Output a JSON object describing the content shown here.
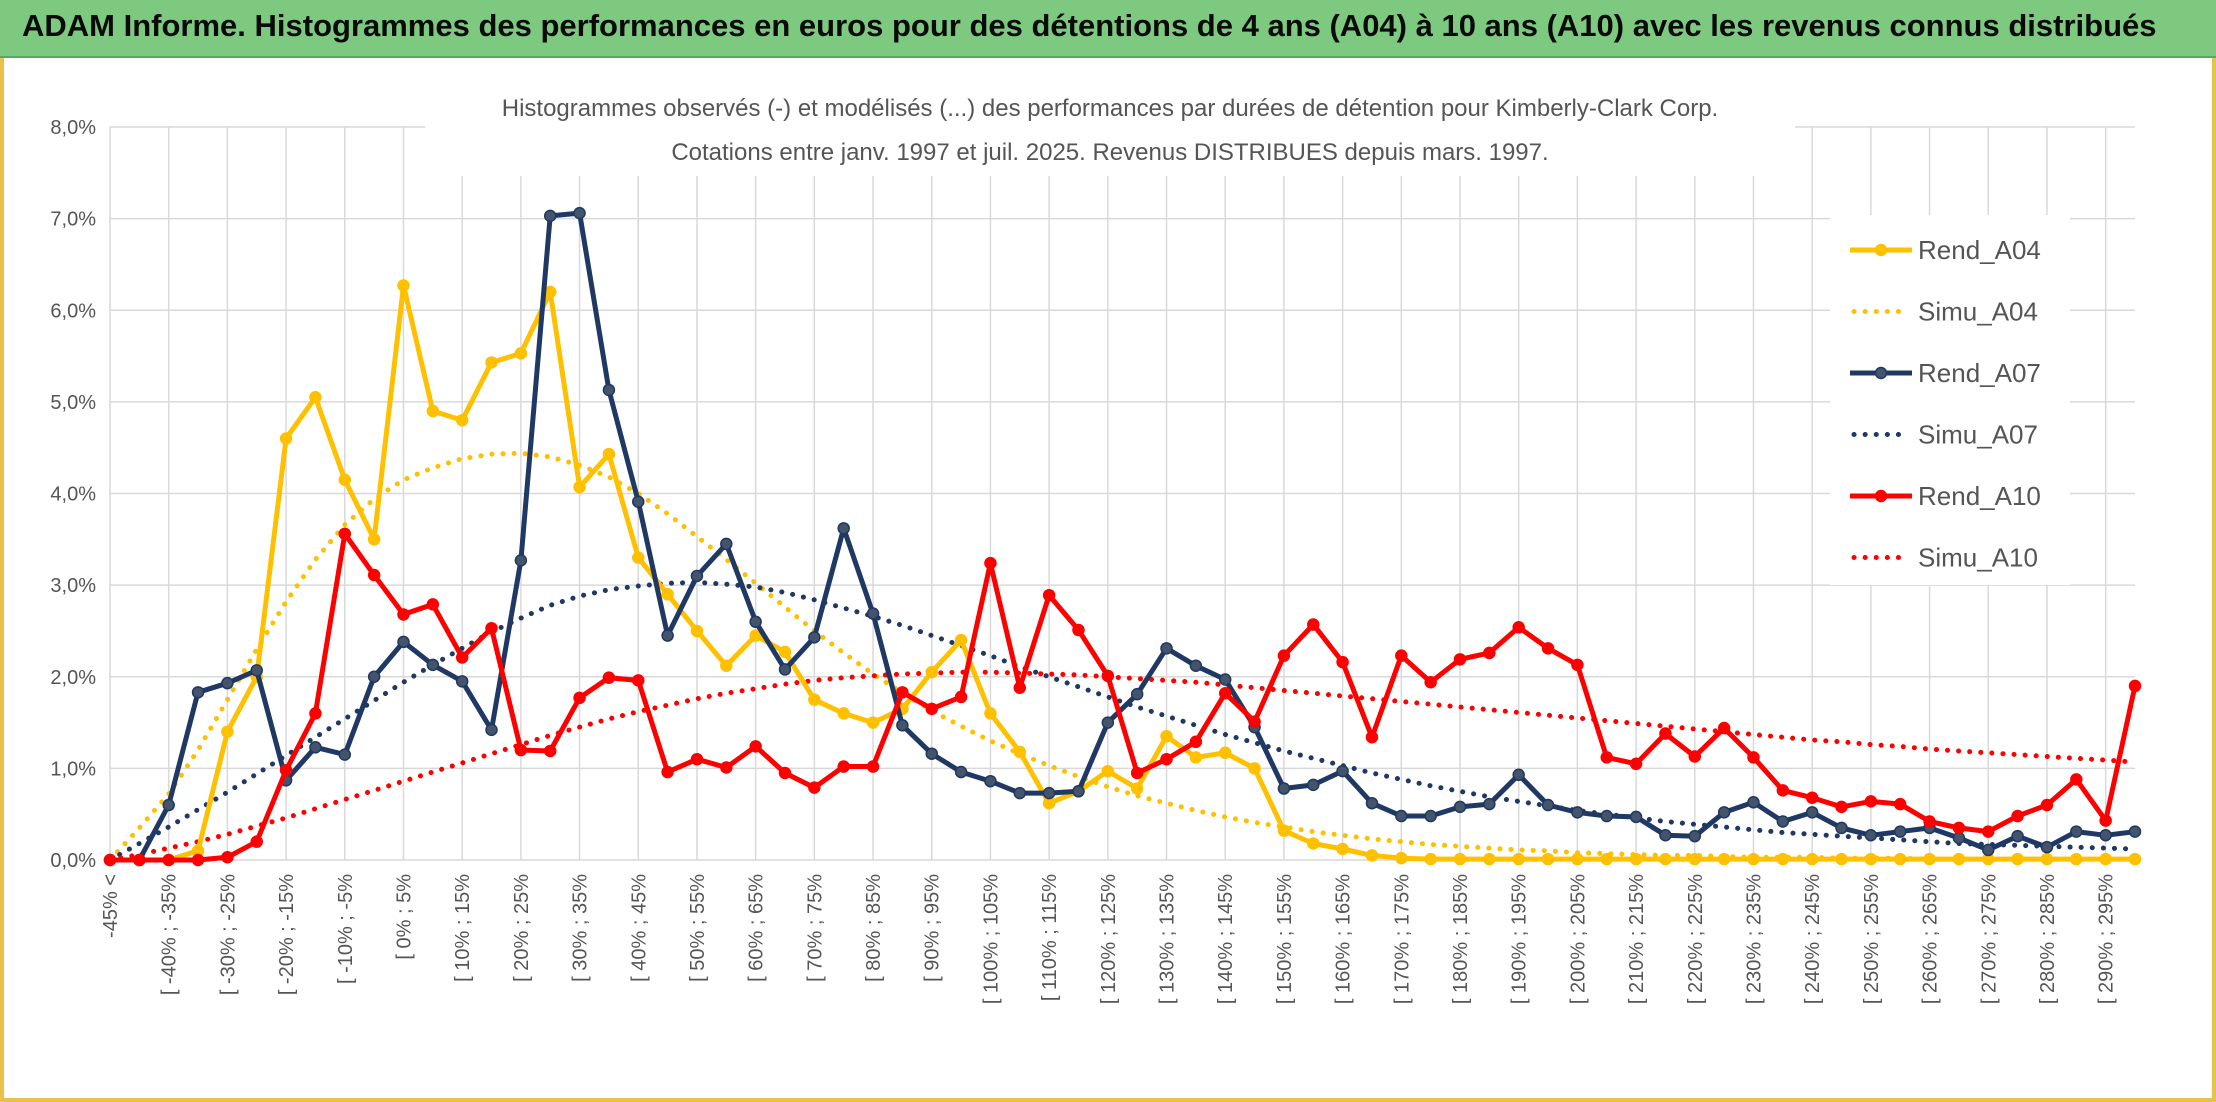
{
  "banner": {
    "title": "ADAM Informe. Histogrammes des performances en euros pour des détentions de 4 ans (A04) à 10 ans (A10) avec les revenus connus distribués"
  },
  "colors": {
    "banner_bg": "#7dc97f",
    "frame": "#e8c24a",
    "A04": "#ffc000",
    "A07": "#1f3864",
    "A10": "#ff0000",
    "grid": "#d9d9d9",
    "text": "#555555"
  },
  "chart_data": {
    "type": "line",
    "title": "Histogrammes observés (-) et modélisés (...) des performances par durées de détention pour Kimberly-Clark Corp.",
    "subtitle": "Cotations entre janv. 1997 et juil. 2025. Revenus DISTRIBUES depuis mars. 1997.",
    "xlabel": "",
    "ylabel": "",
    "ylim": [
      0,
      0.08
    ],
    "y_ticks": [
      "0,0%",
      "1,0%",
      "2,0%",
      "3,0%",
      "4,0%",
      "5,0%",
      "6,0%",
      "7,0%",
      "8,0%"
    ],
    "grid": true,
    "legend_position": "right",
    "categories": [
      "-45% <",
      "[ -45% ; -40%",
      "[ -40% ; -35%",
      "[ -35% ; -30%",
      "[ -30% ; -25%",
      "[ -25% ; -20%",
      "[ -20% ; -15%",
      "[ -15% ; -10%",
      "[ -10% ; -5%",
      "[ -5% ; 0%",
      "[ 0% ; 5%",
      "[ 5% ; 10%",
      "[ 10% ; 15%",
      "[ 15% ; 20%",
      "[ 20% ; 25%",
      "[ 25% ; 30%",
      "[ 30% ; 35%",
      "[ 35% ; 40%",
      "[ 40% ; 45%",
      "[ 45% ; 50%",
      "[ 50% ; 55%",
      "[ 55% ; 60%",
      "[ 60% ; 65%",
      "[ 65% ; 70%",
      "[ 70% ; 75%",
      "[ 75% ; 80%",
      "[ 80% ; 85%",
      "[ 85% ; 90%",
      "[ 90% ; 95%",
      "[ 95% ; 100%",
      "[ 100% ; 105%",
      "[ 105% ; 110%",
      "[ 110% ; 115%",
      "[ 115% ; 120%",
      "[ 120% ; 125%",
      "[ 125% ; 130%",
      "[ 130% ; 135%",
      "[ 135% ; 140%",
      "[ 140% ; 145%",
      "[ 145% ; 150%",
      "[ 150% ; 155%",
      "[ 155% ; 160%",
      "[ 160% ; 165%",
      "[ 165% ; 170%",
      "[ 170% ; 175%",
      "[ 175% ; 180%",
      "[ 180% ; 185%",
      "[ 185% ; 190%",
      "[ 190% ; 195%",
      "[ 195% ; 200%",
      "[ 200% ; 205%",
      "[ 205% ; 210%",
      "[ 210% ; 215%",
      "[ 215% ; 220%",
      "[ 220% ; 225%",
      "[ 225% ; 230%",
      "[ 230% ; 235%",
      "[ 235% ; 240%",
      "[ 240% ; 245%",
      "[ 245% ; 250%",
      "[ 250% ; 255%",
      "[ 255% ; 260%",
      "[ 260% ; 265%",
      "[ 265% ; 270%",
      "[ 270% ; 275%",
      "[ 275% ; 280%",
      "[ 280% ; 285%",
      "[ 285% ; 290%",
      "[ 290% ; 295%",
      "[ 295% ; 300%"
    ],
    "visible_tick_labels": [
      "-45% <",
      "[ -40% ; -35%",
      "[ -30% ; -25%",
      "[ -20% ; -15%",
      "[ -10% ; -5%",
      "[ 0% ; 5%",
      "[ 10% ; 15%",
      "[ 20% ; 25%",
      "[ 30% ; 35%",
      "[ 40% ; 45%",
      "[ 50% ; 55%",
      "[ 60% ; 65%",
      "[ 70% ; 75%",
      "[ 80% ; 85%",
      "[ 90% ; 95%",
      "[ 100% ; 105%",
      "[ 110% ; 115%",
      "[ 120% ; 125%",
      "[ 130% ; 135%",
      "[ 140% ; 145%",
      "[ 150% ; 155%",
      "[ 160% ; 165%",
      "[ 170% ; 175%",
      "[ 180% ; 185%",
      "[ 190% ; 195%",
      "[ 200% ; 205%",
      "[ 210% ; 215%",
      "[ 220% ; 225%",
      "[ 230% ; 235%",
      "[ 240% ; 245%",
      "[ 250% ; 255%",
      "[ 260% ; 265%",
      "[ 270% ; 275%",
      "[ 280% ; 285%",
      "[ 290% ; 295%"
    ],
    "series": [
      {
        "name": "Rend_A04",
        "style": "solid",
        "marker": true,
        "color": "#ffc000",
        "values": [
          0.0,
          0.0,
          0.0,
          0.001,
          0.014,
          0.02,
          0.046,
          0.0505,
          0.0415,
          0.035,
          0.0627,
          0.049,
          0.048,
          0.0543,
          0.0553,
          0.062,
          0.0407,
          0.0443,
          0.033,
          0.029,
          0.025,
          0.0212,
          0.0245,
          0.0227,
          0.0175,
          0.016,
          0.015,
          0.0165,
          0.0205,
          0.024,
          0.016,
          0.0118,
          0.0062,
          0.0075,
          0.0097,
          0.0078,
          0.0135,
          0.0112,
          0.0117,
          0.01,
          0.0032,
          0.0018,
          0.0012,
          0.0005,
          0.0002,
          0.0001,
          0.0001,
          0.0001,
          0.0001,
          0.0001,
          0.0001,
          0.0001,
          0.0001,
          0.0001,
          0.0001,
          0.0001,
          0.0001,
          0.0001,
          0.0001,
          0.0001,
          0.0001,
          0.0001,
          0.0001,
          0.0001,
          0.0001,
          0.0001,
          0.0001,
          0.0001,
          0.0001,
          0.0001
        ]
      },
      {
        "name": "Simu_A04",
        "style": "dotted",
        "marker": false,
        "color": "#ffc000",
        "values": [
          0.0,
          0.0035,
          0.0072,
          0.012,
          0.0175,
          0.023,
          0.0282,
          0.0328,
          0.0366,
          0.0394,
          0.0415,
          0.0428,
          0.0438,
          0.0443,
          0.0444,
          0.044,
          0.0431,
          0.0418,
          0.04,
          0.0378,
          0.0353,
          0.0328,
          0.0302,
          0.0276,
          0.025,
          0.0226,
          0.0203,
          0.0182,
          0.0163,
          0.0146,
          0.013,
          0.0116,
          0.0103,
          0.0091,
          0.008,
          0.007,
          0.0062,
          0.0054,
          0.0047,
          0.0041,
          0.0036,
          0.0031,
          0.0027,
          0.0023,
          0.002,
          0.0017,
          0.0015,
          0.0013,
          0.0011,
          0.001,
          0.0008,
          0.0007,
          0.0006,
          0.0005,
          0.0005,
          0.0004,
          0.0003,
          0.0003,
          0.0003,
          0.0002,
          0.0002,
          0.0002,
          0.0001,
          0.0001,
          0.0001,
          0.0001,
          0.0001,
          0.0001,
          0.0001,
          0.0001
        ]
      },
      {
        "name": "Rend_A07",
        "style": "solid",
        "marker": true,
        "color": "#1f3864",
        "values": [
          0.0,
          0.0,
          0.006,
          0.0183,
          0.0193,
          0.0207,
          0.0087,
          0.0123,
          0.0115,
          0.02,
          0.0238,
          0.0213,
          0.0195,
          0.0142,
          0.0327,
          0.0703,
          0.0706,
          0.0513,
          0.0391,
          0.0245,
          0.031,
          0.0345,
          0.026,
          0.0208,
          0.0243,
          0.0362,
          0.0269,
          0.0147,
          0.0116,
          0.0096,
          0.0086,
          0.0073,
          0.0073,
          0.0075,
          0.015,
          0.0181,
          0.0231,
          0.0212,
          0.0197,
          0.0145,
          0.0078,
          0.0082,
          0.0097,
          0.0062,
          0.0048,
          0.0048,
          0.0058,
          0.0061,
          0.0093,
          0.006,
          0.0052,
          0.0048,
          0.0047,
          0.0027,
          0.0026,
          0.0052,
          0.0063,
          0.0042,
          0.0052,
          0.0035,
          0.0027,
          0.0031,
          0.0035,
          0.0024,
          0.0011,
          0.0026,
          0.0014,
          0.0031,
          0.0027,
          0.0031
        ]
      },
      {
        "name": "Simu_A07",
        "style": "dotted",
        "marker": false,
        "color": "#1f3864",
        "values": [
          0.0,
          0.0018,
          0.0036,
          0.0055,
          0.0074,
          0.0094,
          0.0114,
          0.0134,
          0.0154,
          0.0174,
          0.0194,
          0.0213,
          0.0231,
          0.0249,
          0.0264,
          0.0278,
          0.0288,
          0.0295,
          0.0299,
          0.0302,
          0.0303,
          0.0301,
          0.0298,
          0.0292,
          0.0284,
          0.0275,
          0.0266,
          0.0256,
          0.0245,
          0.0234,
          0.0223,
          0.0211,
          0.02,
          0.0189,
          0.0178,
          0.0167,
          0.0157,
          0.0147,
          0.0137,
          0.0128,
          0.0119,
          0.0111,
          0.0103,
          0.0095,
          0.0088,
          0.0081,
          0.0075,
          0.0069,
          0.0064,
          0.0059,
          0.0054,
          0.005,
          0.0046,
          0.0042,
          0.0039,
          0.0036,
          0.0033,
          0.003,
          0.0028,
          0.0026,
          0.0024,
          0.0022,
          0.002,
          0.0018,
          0.0017,
          0.0016,
          0.0015,
          0.0014,
          0.0013,
          0.0012
        ]
      },
      {
        "name": "Rend_A10",
        "style": "solid",
        "marker": true,
        "color": "#ff0000",
        "values": [
          0.0,
          0.0,
          0.0,
          0.0,
          0.0003,
          0.002,
          0.0098,
          0.016,
          0.0356,
          0.0311,
          0.0268,
          0.0279,
          0.0221,
          0.0253,
          0.012,
          0.0119,
          0.0177,
          0.0199,
          0.0196,
          0.0096,
          0.011,
          0.0101,
          0.0124,
          0.0095,
          0.0079,
          0.0102,
          0.0102,
          0.0183,
          0.0165,
          0.0178,
          0.0324,
          0.0188,
          0.0289,
          0.0251,
          0.0201,
          0.0095,
          0.011,
          0.0129,
          0.0182,
          0.0151,
          0.0223,
          0.0257,
          0.0216,
          0.0134,
          0.0223,
          0.0194,
          0.0219,
          0.0226,
          0.0254,
          0.0231,
          0.0213,
          0.0112,
          0.0105,
          0.0138,
          0.0113,
          0.0144,
          0.0112,
          0.0076,
          0.0068,
          0.0058,
          0.0064,
          0.0061,
          0.0042,
          0.0035,
          0.0031,
          0.0048,
          0.006,
          0.0088,
          0.0043,
          0.019
        ]
      },
      {
        "name": "Simu_A10",
        "style": "dotted",
        "marker": false,
        "color": "#ff0000",
        "values": [
          0.0,
          0.0006,
          0.0013,
          0.002,
          0.0028,
          0.0037,
          0.0046,
          0.0056,
          0.0066,
          0.0076,
          0.0086,
          0.0096,
          0.0106,
          0.0116,
          0.0126,
          0.0136,
          0.0145,
          0.0154,
          0.0162,
          0.0169,
          0.0176,
          0.0182,
          0.0187,
          0.0192,
          0.0196,
          0.0199,
          0.0201,
          0.0203,
          0.0204,
          0.0205,
          0.0205,
          0.0204,
          0.0203,
          0.0202,
          0.02,
          0.0198,
          0.0196,
          0.0194,
          0.0191,
          0.0188,
          0.0185,
          0.0182,
          0.0179,
          0.0176,
          0.0173,
          0.017,
          0.0167,
          0.0164,
          0.0161,
          0.0158,
          0.0155,
          0.0152,
          0.0149,
          0.0146,
          0.0143,
          0.014,
          0.0137,
          0.0134,
          0.0131,
          0.0129,
          0.0126,
          0.0124,
          0.0121,
          0.0119,
          0.0117,
          0.0115,
          0.0113,
          0.0111,
          0.0109,
          0.0107
        ]
      }
    ]
  }
}
